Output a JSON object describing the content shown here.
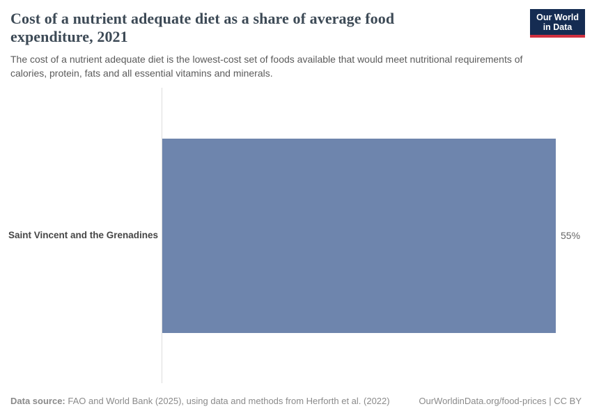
{
  "header": {
    "title": "Cost of a nutrient adequate diet as a share of average food expenditure, 2021",
    "title_lines": [
      "Cost of a nutrient adequate diet as a share of average food",
      "expenditure, 2021"
    ],
    "subtitle": "The cost of a nutrient adequate diet is the lowest-cost set of foods available that would meet nutritional requirements of calories, protein, fats and all essential vitamins and minerals.",
    "subtitle_lines": [
      "The cost of a nutrient adequate diet is the lowest-cost set of foods available that would meet nutritional requirements of",
      "calories, protein, fats and all essential vitamins and minerals."
    ],
    "logo": {
      "line1": "Our World",
      "line2": "in Data"
    }
  },
  "chart_data": {
    "type": "bar",
    "orientation": "horizontal",
    "title": "Cost of a nutrient adequate diet as a share of average food expenditure, 2021",
    "categories": [
      "Saint Vincent and the Grenadines"
    ],
    "values": [
      55
    ],
    "value_labels": [
      "55%"
    ],
    "xlabel": "",
    "ylabel": "",
    "xlim": [
      0,
      55
    ],
    "grid": false,
    "legend": false,
    "bar_color": "#6e85ad"
  },
  "footer": {
    "datasource_label": "Data source:",
    "datasource_text": " FAO and World Bank (2025), using data and methods from Herforth et al. (2022)",
    "link_text": "OurWorldinData.org/food-prices | CC BY"
  },
  "colors": {
    "bar": "#6e85ad",
    "axis_line": "#dcdcdc",
    "title_text": "#3d4a56",
    "logo_bg": "#152c52",
    "logo_stripe": "#d0303f"
  }
}
